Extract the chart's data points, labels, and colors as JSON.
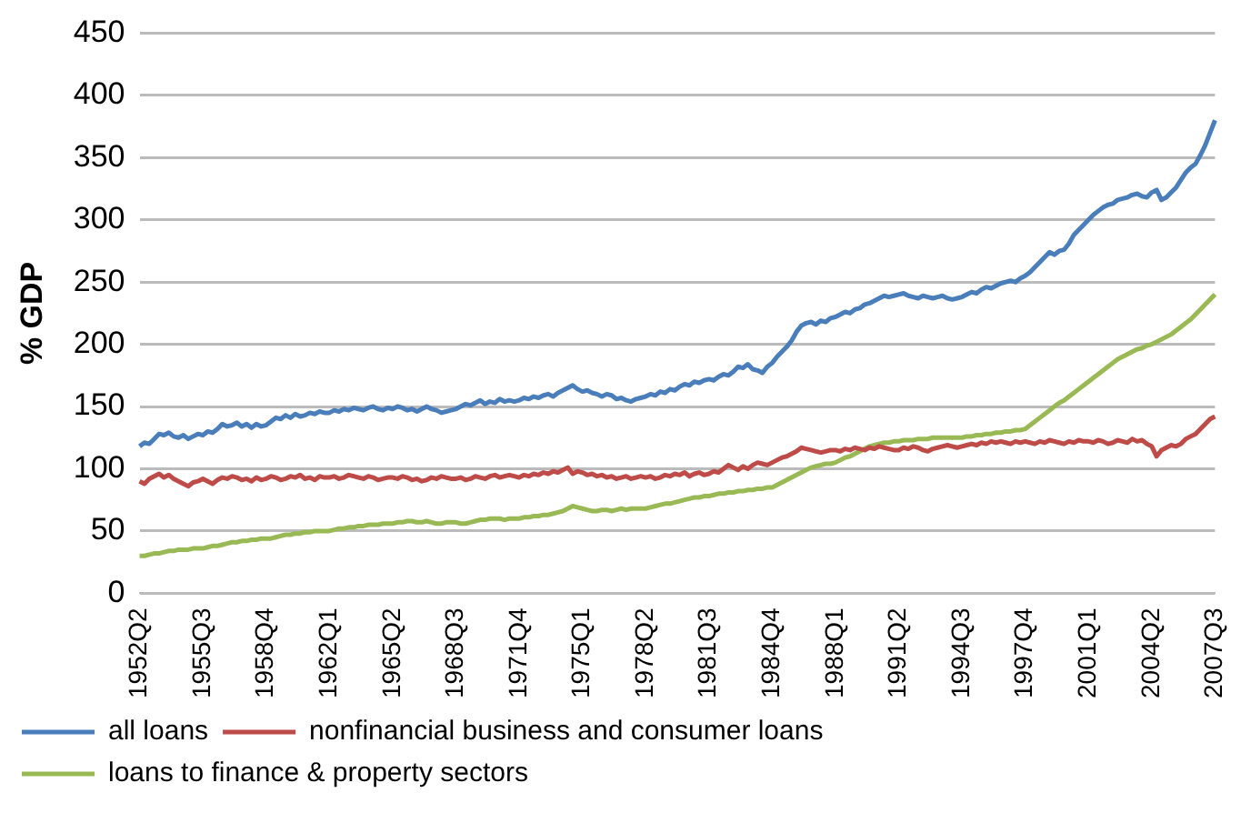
{
  "chart_data": {
    "type": "line",
    "ylabel": "% GDP",
    "ylim": [
      0,
      450
    ],
    "yticks": [
      0,
      50,
      100,
      150,
      200,
      250,
      300,
      350,
      400,
      450
    ],
    "grid": "y",
    "legend": "bottom",
    "marker": "none",
    "line_style": "solid",
    "categories": [
      "1952Q2",
      null,
      null,
      null,
      null,
      null,
      null,
      null,
      null,
      null,
      null,
      null,
      null,
      "1955Q3",
      null,
      null,
      null,
      null,
      null,
      null,
      null,
      null,
      null,
      null,
      null,
      null,
      "1958Q4",
      null,
      null,
      null,
      null,
      null,
      null,
      null,
      null,
      null,
      null,
      null,
      null,
      "1962Q1",
      null,
      null,
      null,
      null,
      null,
      null,
      null,
      null,
      null,
      null,
      null,
      null,
      "1965Q2",
      null,
      null,
      null,
      null,
      null,
      null,
      null,
      null,
      null,
      null,
      null,
      null,
      "1968Q3",
      null,
      null,
      null,
      null,
      null,
      null,
      null,
      null,
      null,
      null,
      null,
      null,
      "1971Q4",
      null,
      null,
      null,
      null,
      null,
      null,
      null,
      null,
      null,
      null,
      null,
      null,
      "1975Q1",
      null,
      null,
      null,
      null,
      null,
      null,
      null,
      null,
      null,
      null,
      null,
      null,
      "1978Q2",
      null,
      null,
      null,
      null,
      null,
      null,
      null,
      null,
      null,
      null,
      null,
      null,
      "1981Q3",
      null,
      null,
      null,
      null,
      null,
      null,
      null,
      null,
      null,
      null,
      null,
      null,
      "1984Q4",
      null,
      null,
      null,
      null,
      null,
      null,
      null,
      null,
      null,
      null,
      null,
      null,
      "1988Q1",
      null,
      null,
      null,
      null,
      null,
      null,
      null,
      null,
      null,
      null,
      null,
      null,
      "1991Q2",
      null,
      null,
      null,
      null,
      null,
      null,
      null,
      null,
      null,
      null,
      null,
      null,
      "1994Q3",
      null,
      null,
      null,
      null,
      null,
      null,
      null,
      null,
      null,
      null,
      null,
      null,
      "1997Q4",
      null,
      null,
      null,
      null,
      null,
      null,
      null,
      null,
      null,
      null,
      null,
      null,
      "2001Q1",
      null,
      null,
      null,
      null,
      null,
      null,
      null,
      null,
      null,
      null,
      null,
      null,
      "2004Q2",
      null,
      null,
      null,
      null,
      null,
      null,
      null,
      null,
      null,
      null,
      null,
      null,
      "2007Q3"
    ],
    "series": [
      {
        "name": "all loans",
        "color": "#4a7ebb",
        "values": [
          118,
          121,
          120,
          124,
          128,
          127,
          129,
          126,
          125,
          127,
          124,
          126,
          128,
          127,
          130,
          129,
          132,
          136,
          134,
          135,
          137,
          134,
          136,
          133,
          136,
          134,
          135,
          138,
          141,
          140,
          143,
          141,
          144,
          142,
          143,
          145,
          144,
          146,
          145,
          145,
          147,
          146,
          148,
          147,
          149,
          148,
          147,
          149,
          150,
          148,
          147,
          149,
          148,
          150,
          149,
          147,
          148,
          146,
          148,
          150,
          148,
          147,
          145,
          146,
          147,
          148,
          150,
          152,
          151,
          153,
          155,
          152,
          154,
          153,
          156,
          154,
          155,
          154,
          155,
          157,
          156,
          158,
          157,
          159,
          160,
          158,
          161,
          163,
          165,
          167,
          164,
          162,
          163,
          161,
          160,
          158,
          160,
          159,
          156,
          157,
          155,
          154,
          156,
          157,
          158,
          160,
          159,
          162,
          161,
          164,
          163,
          166,
          168,
          167,
          170,
          169,
          171,
          172,
          171,
          174,
          176,
          175,
          178,
          182,
          181,
          184,
          180,
          179,
          177,
          182,
          185,
          190,
          194,
          198,
          203,
          210,
          215,
          217,
          218,
          216,
          219,
          218,
          221,
          222,
          224,
          226,
          225,
          228,
          229,
          232,
          233,
          235,
          237,
          239,
          238,
          239,
          240,
          241,
          239,
          238,
          237,
          239,
          238,
          237,
          238,
          239,
          237,
          236,
          237,
          238,
          240,
          242,
          241,
          244,
          246,
          245,
          247,
          249,
          250,
          251,
          250,
          253,
          255,
          258,
          262,
          266,
          270,
          274,
          272,
          275,
          276,
          281,
          288,
          292,
          296,
          300,
          304,
          307,
          310,
          312,
          313,
          316,
          317,
          318,
          320,
          321,
          319,
          318,
          322,
          324,
          316,
          318,
          322,
          326,
          332,
          338,
          342,
          345,
          352,
          360,
          370,
          380
        ]
      },
      {
        "name": "nonfinancial business and consumer loans",
        "color": "#be4b48",
        "values": [
          90,
          88,
          92,
          94,
          96,
          93,
          95,
          92,
          90,
          88,
          86,
          89,
          90,
          92,
          90,
          88,
          91,
          93,
          92,
          94,
          93,
          91,
          92,
          90,
          93,
          91,
          92,
          94,
          93,
          91,
          92,
          94,
          93,
          95,
          92,
          93,
          91,
          94,
          93,
          93,
          94,
          92,
          93,
          95,
          94,
          93,
          92,
          94,
          93,
          91,
          92,
          93,
          93,
          92,
          94,
          93,
          91,
          92,
          90,
          91,
          93,
          92,
          94,
          93,
          92,
          92,
          93,
          91,
          92,
          94,
          93,
          92,
          94,
          95,
          93,
          94,
          95,
          94,
          93,
          95,
          94,
          96,
          95,
          97,
          96,
          98,
          97,
          99,
          101,
          96,
          98,
          97,
          95,
          96,
          94,
          95,
          93,
          94,
          92,
          93,
          94,
          92,
          93,
          94,
          93,
          94,
          92,
          93,
          95,
          94,
          96,
          95,
          97,
          94,
          96,
          97,
          95,
          96,
          98,
          97,
          100,
          103,
          101,
          99,
          102,
          100,
          103,
          105,
          104,
          103,
          105,
          107,
          109,
          110,
          112,
          114,
          117,
          116,
          115,
          114,
          113,
          114,
          115,
          115,
          114,
          116,
          115,
          117,
          116,
          115,
          117,
          116,
          118,
          117,
          116,
          115,
          115,
          117,
          116,
          118,
          117,
          115,
          114,
          116,
          117,
          118,
          119,
          118,
          117,
          118,
          119,
          120,
          119,
          121,
          120,
          122,
          121,
          122,
          121,
          120,
          122,
          121,
          122,
          121,
          120,
          122,
          121,
          123,
          122,
          121,
          120,
          122,
          121,
          123,
          122,
          122,
          121,
          123,
          122,
          120,
          121,
          123,
          122,
          121,
          124,
          122,
          123,
          120,
          118,
          110,
          115,
          117,
          119,
          118,
          120,
          124,
          126,
          128,
          132,
          136,
          140,
          142
        ]
      },
      {
        "name": "loans to finance & property sectors",
        "color": "#98b954",
        "values": [
          30,
          30,
          31,
          32,
          32,
          33,
          34,
          34,
          35,
          35,
          35,
          36,
          36,
          36,
          37,
          38,
          38,
          39,
          40,
          41,
          41,
          42,
          42,
          43,
          43,
          44,
          44,
          44,
          45,
          46,
          47,
          47,
          48,
          48,
          49,
          49,
          50,
          50,
          50,
          50,
          51,
          52,
          52,
          53,
          53,
          54,
          54,
          55,
          55,
          55,
          56,
          56,
          56,
          57,
          57,
          58,
          58,
          57,
          57,
          58,
          57,
          56,
          56,
          57,
          57,
          57,
          56,
          56,
          57,
          58,
          59,
          59,
          60,
          60,
          60,
          59,
          60,
          60,
          60,
          61,
          61,
          62,
          62,
          63,
          63,
          64,
          65,
          66,
          68,
          70,
          69,
          68,
          67,
          66,
          66,
          67,
          67,
          66,
          67,
          68,
          67,
          68,
          68,
          68,
          68,
          69,
          70,
          71,
          72,
          72,
          73,
          74,
          75,
          76,
          77,
          77,
          78,
          78,
          79,
          80,
          80,
          81,
          81,
          82,
          82,
          83,
          83,
          84,
          84,
          85,
          85,
          87,
          89,
          91,
          93,
          95,
          97,
          99,
          101,
          102,
          103,
          104,
          104,
          105,
          107,
          109,
          110,
          112,
          114,
          116,
          118,
          119,
          120,
          121,
          121,
          122,
          122,
          123,
          123,
          123,
          124,
          124,
          124,
          125,
          125,
          125,
          125,
          125,
          125,
          125,
          126,
          126,
          127,
          127,
          128,
          128,
          129,
          129,
          130,
          130,
          131,
          131,
          132,
          135,
          138,
          141,
          144,
          147,
          150,
          153,
          155,
          158,
          161,
          164,
          167,
          170,
          173,
          176,
          179,
          182,
          185,
          188,
          190,
          192,
          194,
          196,
          197,
          199,
          200,
          202,
          204,
          206,
          208,
          211,
          214,
          217,
          220,
          224,
          228,
          232,
          236,
          240
        ]
      }
    ]
  }
}
